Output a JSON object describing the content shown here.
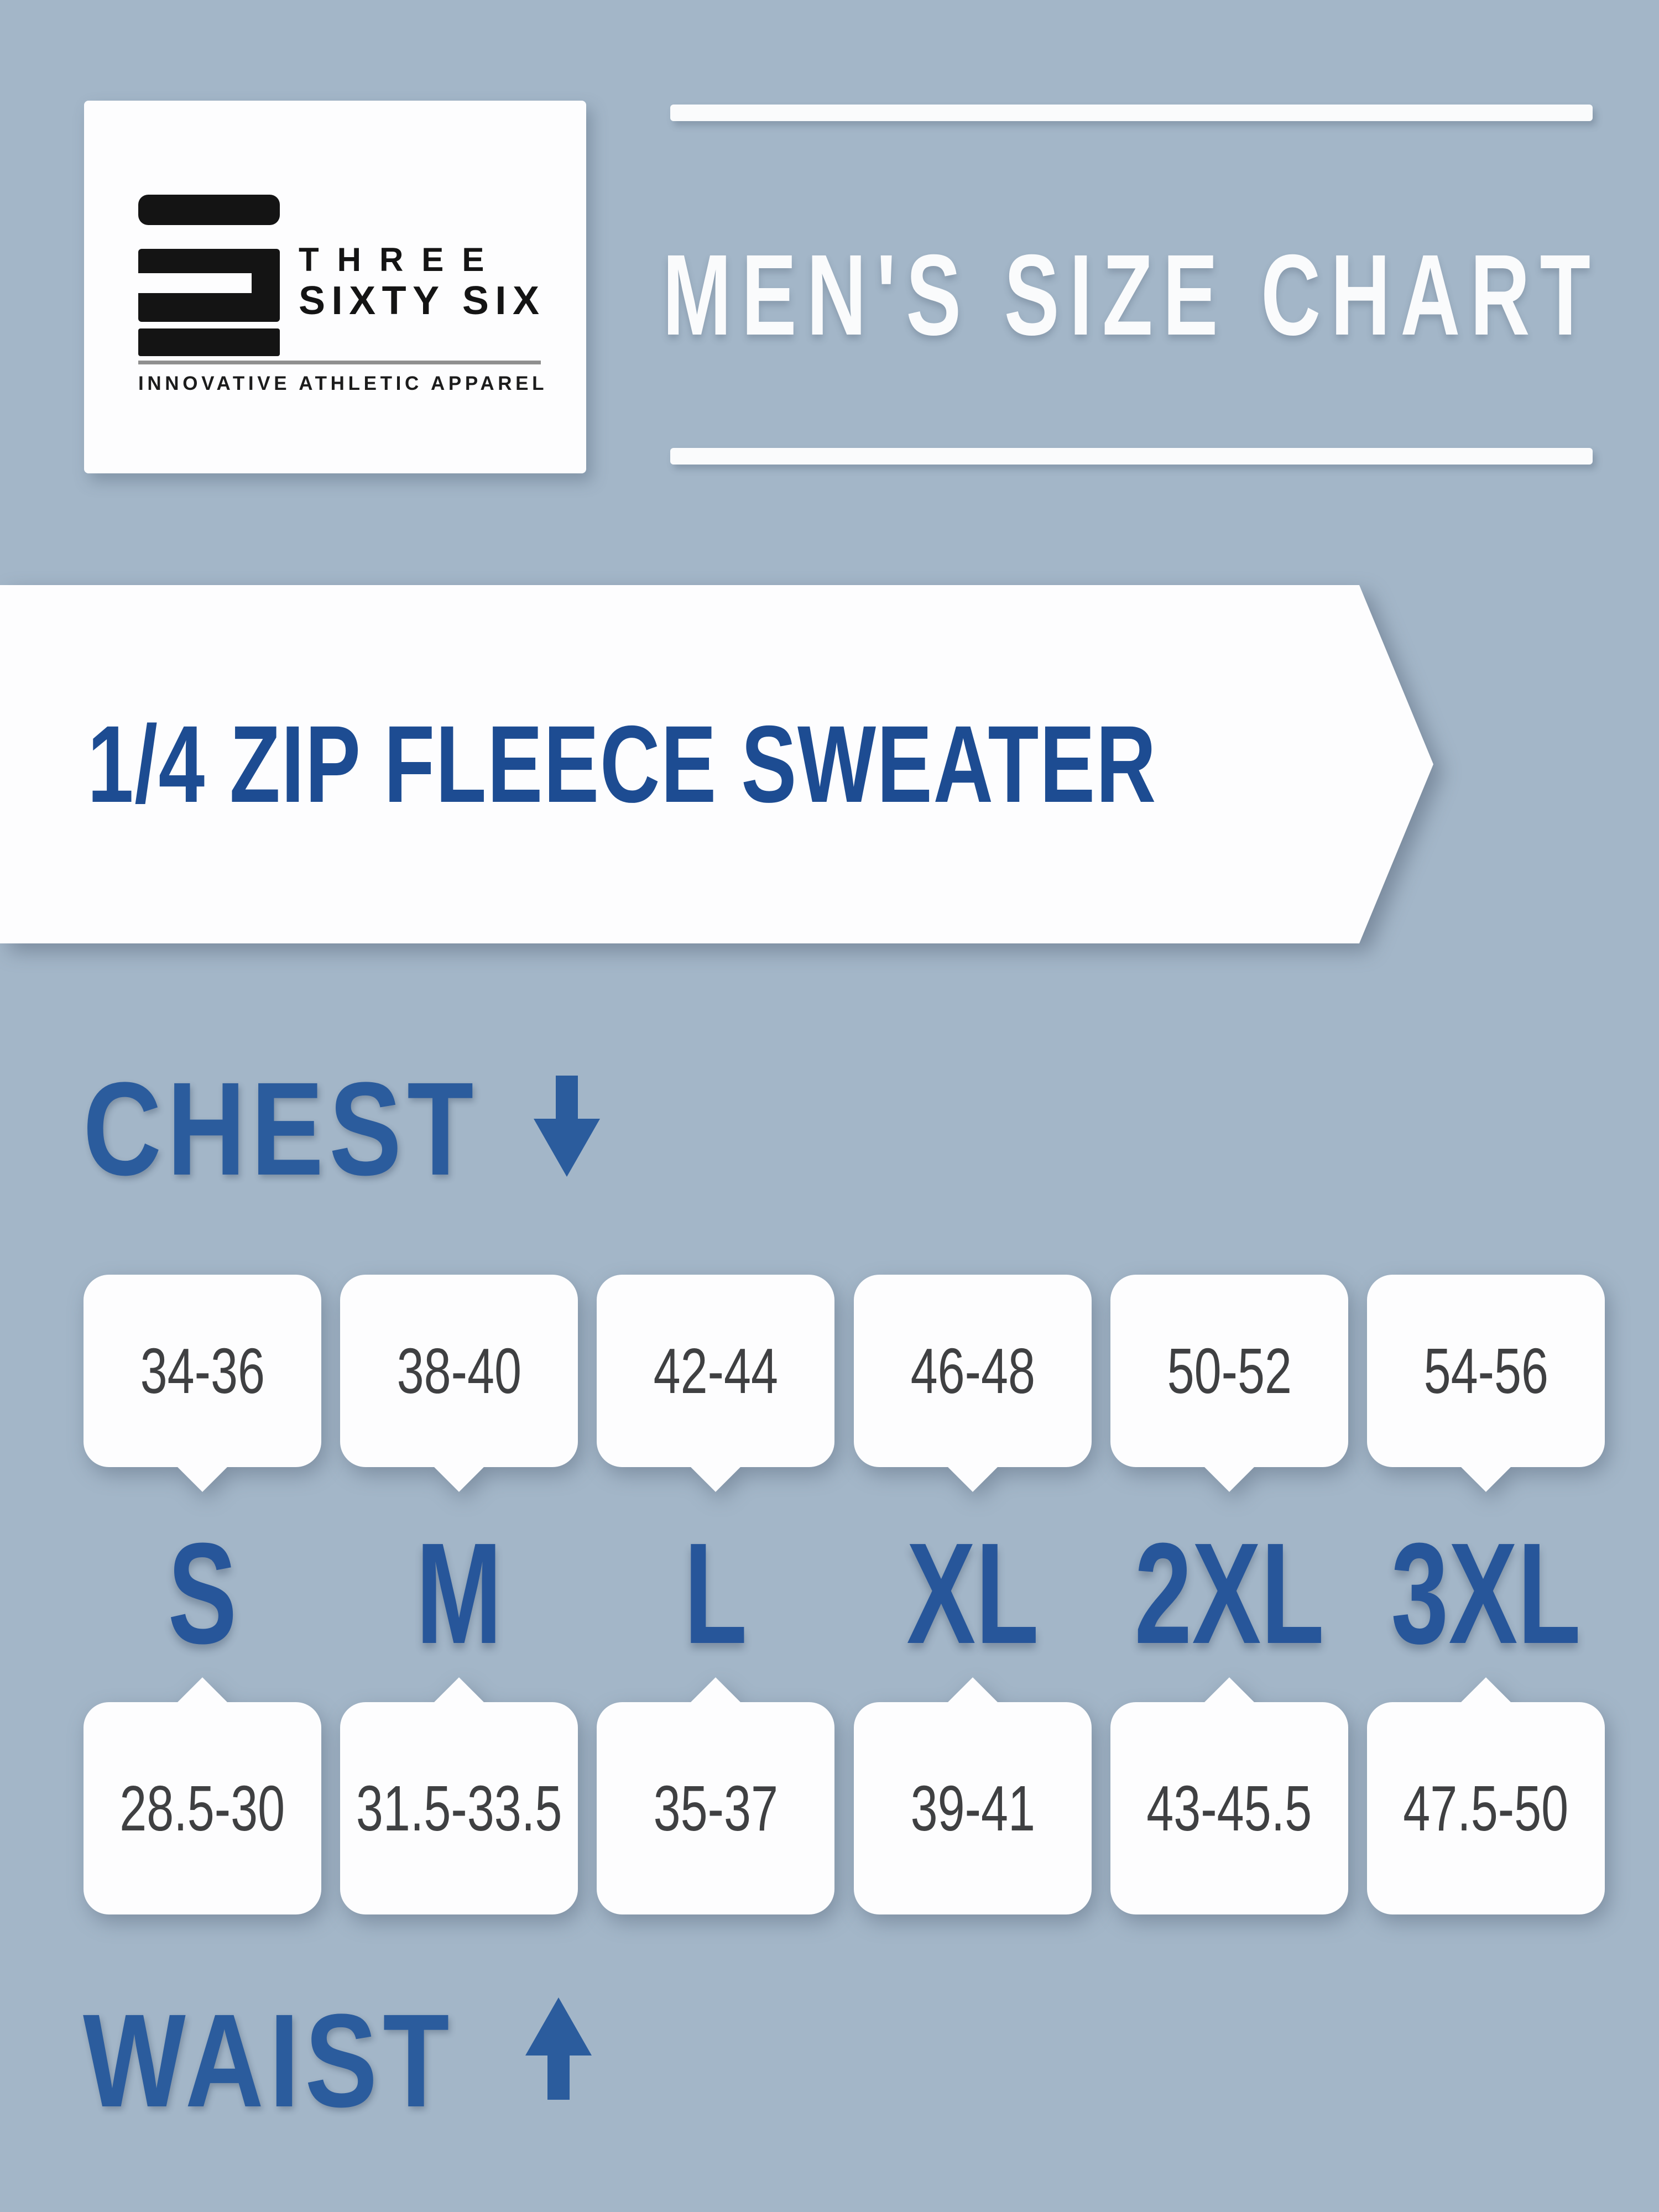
{
  "colors": {
    "background": "#a3b6c8",
    "accent_blue": "#2b5c9d",
    "banner_text_blue": "#1d4c92",
    "size_label_blue": "#27569a",
    "value_gray": "#3f4042",
    "card_white": "#fdfdfe",
    "logo_black": "#141414"
  },
  "logo": {
    "brand_line1": "THREE",
    "brand_line2": "SIXTY SIX",
    "tagline": "INNOVATIVE ATHLETIC APPAREL"
  },
  "header": {
    "title": "MEN'S SIZE CHART"
  },
  "banner": {
    "title": "1/4 ZIP FLEECE SWEATER"
  },
  "chest": {
    "label": "CHEST",
    "values": [
      "34-36",
      "38-40",
      "42-44",
      "46-48",
      "50-52",
      "54-56"
    ]
  },
  "sizes": [
    "S",
    "M",
    "L",
    "XL",
    "2XL",
    "3XL"
  ],
  "waist": {
    "label": "WAIST",
    "values": [
      "28.5-30",
      "31.5-33.5",
      "35-37",
      "39-41",
      "43-45.5",
      "47.5-50"
    ]
  },
  "chart_data": {
    "type": "table",
    "title": "MEN'S SIZE CHART",
    "subtitle": "1/4 ZIP FLEECE SWEATER",
    "columns": [
      "S",
      "M",
      "L",
      "XL",
      "2XL",
      "3XL"
    ],
    "rows": [
      {
        "label": "CHEST",
        "values": [
          "34-36",
          "38-40",
          "42-44",
          "46-48",
          "50-52",
          "54-56"
        ]
      },
      {
        "label": "WAIST",
        "values": [
          "28.5-30",
          "31.5-33.5",
          "35-37",
          "39-41",
          "43-45.5",
          "47.5-50"
        ]
      }
    ]
  }
}
